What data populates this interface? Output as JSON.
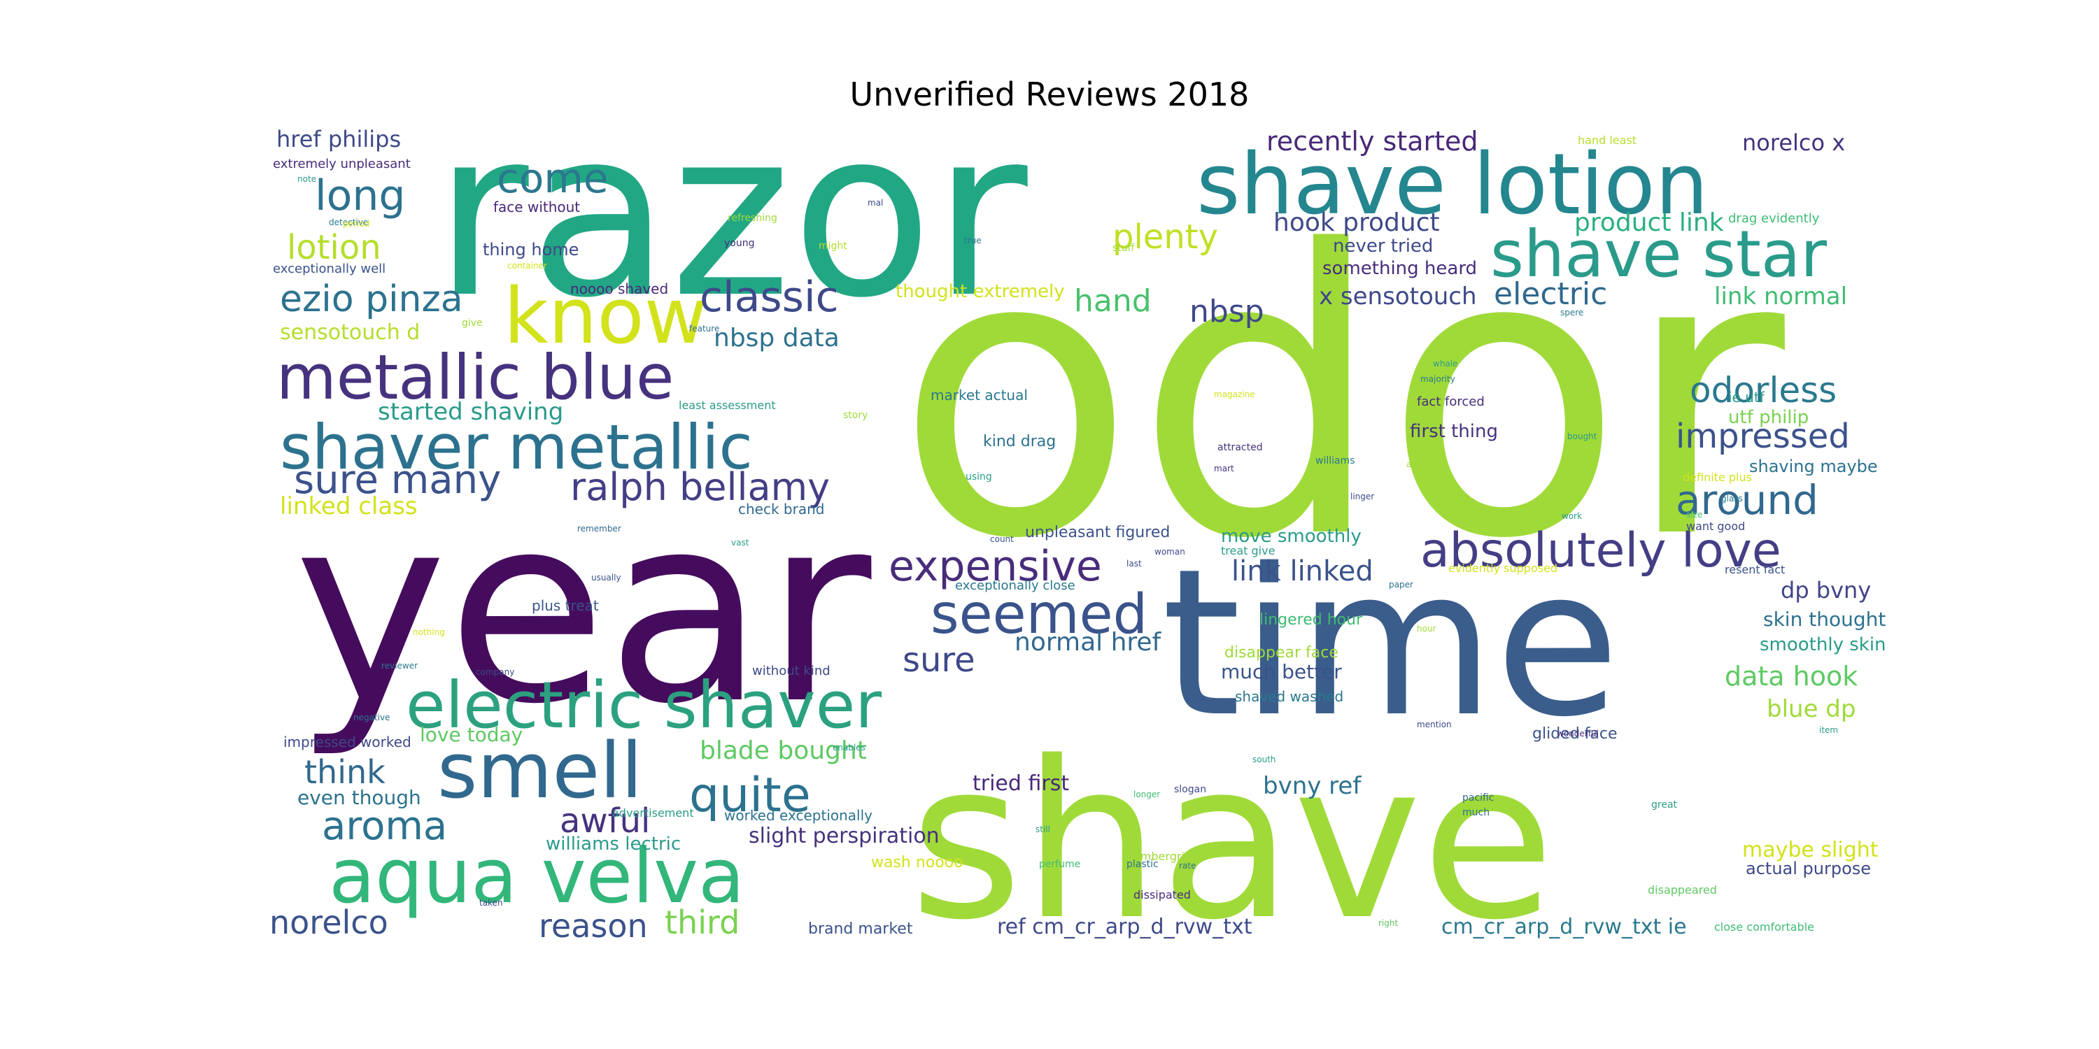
{
  "title": "Unverified Reviews 2018",
  "words": [
    {
      "text": "odor",
      "color": "#a0da39"
    },
    {
      "text": "razor",
      "color": "#22a785"
    },
    {
      "text": "year",
      "color": "#450c5d"
    },
    {
      "text": "time",
      "color": "#3b5d8b"
    },
    {
      "text": "shave",
      "color": "#a0da39"
    },
    {
      "text": "shave lotion",
      "color": "#24868e"
    },
    {
      "text": "shave star",
      "color": "#2a9b8a"
    },
    {
      "text": "know",
      "color": "#d2e21b"
    },
    {
      "text": "metallic blue",
      "color": "#46327e"
    },
    {
      "text": "shaver metallic",
      "color": "#2c728e"
    },
    {
      "text": "electric shaver",
      "color": "#2ba17f"
    },
    {
      "text": "aqua velva",
      "color": "#32b67a"
    },
    {
      "text": "smell",
      "color": "#31688e"
    },
    {
      "text": "absolutely love",
      "color": "#433e85"
    },
    {
      "text": "seemed",
      "color": "#3a538b"
    },
    {
      "text": "expensive",
      "color": "#472d7b"
    },
    {
      "text": "ralph bellamy",
      "color": "#433e85"
    },
    {
      "text": "sure many",
      "color": "#3b528b"
    },
    {
      "text": "classic",
      "color": "#3e4989"
    },
    {
      "text": "ezio pinza",
      "color": "#2c728e"
    },
    {
      "text": "long",
      "color": "#2c728e"
    },
    {
      "text": "come",
      "color": "#2a788e"
    },
    {
      "text": "lotion",
      "color": "#b5de2b"
    },
    {
      "text": "quite",
      "color": "#2c728e"
    },
    {
      "text": "sure",
      "color": "#3e4989"
    },
    {
      "text": "aroma",
      "color": "#2c728e"
    },
    {
      "text": "awful",
      "color": "#46327e"
    },
    {
      "text": "third",
      "color": "#7ad151"
    },
    {
      "text": "reason",
      "color": "#3b528b"
    },
    {
      "text": "norelco",
      "color": "#3b528b"
    },
    {
      "text": "think",
      "color": "#31688e"
    },
    {
      "text": "around",
      "color": "#31688e"
    },
    {
      "text": "odorless",
      "color": "#2a788e"
    },
    {
      "text": "impressed",
      "color": "#3b528b"
    },
    {
      "text": "plenty",
      "color": "#c2df23"
    },
    {
      "text": "hand",
      "color": "#4ac16d"
    },
    {
      "text": "electric",
      "color": "#31688e"
    },
    {
      "text": "nbsp",
      "color": "#3e4989"
    },
    {
      "text": "link linked",
      "color": "#3b528b"
    },
    {
      "text": "recently started",
      "color": "#482878"
    },
    {
      "text": "hook product",
      "color": "#3e4989"
    },
    {
      "text": "product link",
      "color": "#2ab07f"
    },
    {
      "text": "norelco x",
      "color": "#46327e"
    },
    {
      "text": "blade bought",
      "color": "#5ec962"
    },
    {
      "text": "normal href",
      "color": "#31688e"
    },
    {
      "text": "nbsp data",
      "color": "#2c728e"
    },
    {
      "text": "started shaving",
      "color": "#2a9b8a"
    },
    {
      "text": "linked class",
      "color": "#d2e21b"
    },
    {
      "text": "sensotouch d",
      "color": "#b5de2b"
    },
    {
      "text": "href philips",
      "color": "#3e4989"
    },
    {
      "text": "data hook",
      "color": "#5ec962"
    },
    {
      "text": "blue dp",
      "color": "#a0da39"
    },
    {
      "text": "dp bvny",
      "color": "#414487"
    },
    {
      "text": "skin thought",
      "color": "#2c728e"
    },
    {
      "text": "smoothly skin",
      "color": "#2a9b8a"
    },
    {
      "text": "bvny ref",
      "color": "#2c728e"
    },
    {
      "text": "tried first",
      "color": "#482878"
    },
    {
      "text": "slight perspiration",
      "color": "#46327e"
    },
    {
      "text": "even though",
      "color": "#2c728e"
    },
    {
      "text": "love today",
      "color": "#5ec962"
    },
    {
      "text": "williams lectric",
      "color": "#2a9b8a"
    },
    {
      "text": "maybe slight",
      "color": "#d2e21b"
    },
    {
      "text": "actual purpose",
      "color": "#3e4989"
    },
    {
      "text": "ref cm_cr_arp_d_rvw_txt",
      "color": "#3e4989"
    },
    {
      "text": "cm_cr_arp_d_rvw_txt ie",
      "color": "#2a788e"
    },
    {
      "text": "x sensotouch",
      "color": "#3e4989"
    },
    {
      "text": "link normal",
      "color": "#3fbc73"
    },
    {
      "text": "thought extremely",
      "color": "#d2e21b"
    },
    {
      "text": "move smoothly",
      "color": "#2a9b8a"
    },
    {
      "text": "much better",
      "color": "#3b528b"
    },
    {
      "text": "first thing",
      "color": "#46327e"
    },
    {
      "text": "never tried",
      "color": "#3e4989"
    },
    {
      "text": "something heard",
      "color": "#472d7b"
    },
    {
      "text": "utf philip",
      "color": "#7ad151"
    },
    {
      "text": "shaving maybe",
      "color": "#2c728e"
    },
    {
      "text": "thing home",
      "color": "#3e4989"
    },
    {
      "text": "face without",
      "color": "#482878"
    },
    {
      "text": "extremely unpleasant",
      "color": "#472d7b"
    },
    {
      "text": "exceptionally well",
      "color": "#3b528b"
    },
    {
      "text": "impressed worked",
      "color": "#3e4989"
    },
    {
      "text": "worked exceptionally",
      "color": "#2c728e"
    },
    {
      "text": "unpleasant figured",
      "color": "#3b528b"
    },
    {
      "text": "disappear face",
      "color": "#a0da39"
    },
    {
      "text": "lingered hour",
      "color": "#3fbc73"
    },
    {
      "text": "shaved washed",
      "color": "#2a788e"
    },
    {
      "text": "glided face",
      "color": "#3b528b"
    },
    {
      "text": "brand market",
      "color": "#3b528b"
    },
    {
      "text": "wash noooo",
      "color": "#d2e21b"
    },
    {
      "text": "noooo shaved",
      "color": "#482878"
    },
    {
      "text": "check brand",
      "color": "#31688e"
    },
    {
      "text": "plus treat",
      "color": "#3b528b"
    },
    {
      "text": "without kind",
      "color": "#3e4989"
    },
    {
      "text": "kind drag",
      "color": "#2c728e"
    },
    {
      "text": "market actual",
      "color": "#2a788e"
    },
    {
      "text": "fact forced",
      "color": "#472d7b"
    },
    {
      "text": "ie utf",
      "color": "#2a9b8a"
    },
    {
      "text": "hand least",
      "color": "#b5de2b"
    },
    {
      "text": "drag evidently",
      "color": "#3fbc73"
    },
    {
      "text": "want good",
      "color": "#3e4989"
    },
    {
      "text": "resent fact",
      "color": "#3b528b"
    },
    {
      "text": "exceptionally close",
      "color": "#2a788e"
    },
    {
      "text": "evidently supposed",
      "color": "#d2e21b"
    },
    {
      "text": "treat give",
      "color": "#2a9b8a"
    },
    {
      "text": "close comfortable",
      "color": "#3fbc73"
    },
    {
      "text": "least assessment",
      "color": "#2a9b8a"
    },
    {
      "text": "definite plus",
      "color": "#d2e21b"
    },
    {
      "text": "advertisement",
      "color": "#2a9b8a"
    },
    {
      "text": "ambergris",
      "color": "#a0da39"
    },
    {
      "text": "dissipated",
      "color": "#472d7b"
    },
    {
      "text": "disappeared",
      "color": "#5ec962"
    },
    {
      "text": "refreshing",
      "color": "#a0da39"
    },
    {
      "text": "container",
      "color": "#d2e21b"
    },
    {
      "text": "detective",
      "color": "#2a788e"
    },
    {
      "text": "reviewer",
      "color": "#2a788e"
    },
    {
      "text": "negative",
      "color": "#2c728e"
    },
    {
      "text": "company",
      "color": "#3e4989"
    },
    {
      "text": "magazine",
      "color": "#d2e21b"
    },
    {
      "text": "attracted",
      "color": "#46327e"
    },
    {
      "text": "williams",
      "color": "#2a788e"
    },
    {
      "text": "amazing",
      "color": "#a0da39"
    },
    {
      "text": "wonderful",
      "color": "#472d7b"
    },
    {
      "text": "remember",
      "color": "#31688e"
    },
    {
      "text": "usually",
      "color": "#3b528b"
    },
    {
      "text": "nothing",
      "color": "#d2e21b"
    },
    {
      "text": "enables",
      "color": "#2a9b8a"
    },
    {
      "text": "perfume",
      "color": "#3fbc73"
    },
    {
      "text": "plastic",
      "color": "#2c728e"
    },
    {
      "text": "slogan",
      "color": "#3e4989"
    },
    {
      "text": "longer",
      "color": "#3fbc73"
    },
    {
      "text": "pacific",
      "color": "#31688e"
    },
    {
      "text": "mention",
      "color": "#3e4989"
    },
    {
      "text": "majority",
      "color": "#2a788e"
    },
    {
      "text": "feature",
      "color": "#2c728e"
    },
    {
      "text": "bought",
      "color": "#2a9b8a"
    },
    {
      "text": "period",
      "color": "#d2e21b"
    },
    {
      "text": "spere",
      "color": "#2a788e"
    },
    {
      "text": "whale",
      "color": "#2a9b8a"
    },
    {
      "text": "story",
      "color": "#a0da39"
    },
    {
      "text": "using",
      "color": "#2a9b8a"
    },
    {
      "text": "young",
      "color": "#46327e"
    },
    {
      "text": "might",
      "color": "#b5de2b"
    },
    {
      "text": "true",
      "color": "#2c728e"
    },
    {
      "text": "give",
      "color": "#a0da39"
    },
    {
      "text": "note",
      "color": "#2a9b8a"
    },
    {
      "text": "mal",
      "color": "#3e4989"
    },
    {
      "text": "vast",
      "color": "#2a9b8a"
    },
    {
      "text": "count",
      "color": "#3b528b"
    },
    {
      "text": "woman",
      "color": "#3e4989"
    },
    {
      "text": "last",
      "color": "#3e4989"
    },
    {
      "text": "paper",
      "color": "#2c728e"
    },
    {
      "text": "hour",
      "color": "#a0da39"
    },
    {
      "text": "mart",
      "color": "#46327e"
    },
    {
      "text": "linger",
      "color": "#3e4989"
    },
    {
      "text": "work",
      "color": "#2a9b8a"
    },
    {
      "text": "size",
      "color": "#3fbc73"
    },
    {
      "text": "glass",
      "color": "#2a788e"
    },
    {
      "text": "item",
      "color": "#2a9b8a"
    },
    {
      "text": "great",
      "color": "#2a9b8a"
    },
    {
      "text": "south",
      "color": "#2a9b8a"
    },
    {
      "text": "still",
      "color": "#2a9b8a"
    },
    {
      "text": "rate",
      "color": "#2c728e"
    },
    {
      "text": "much",
      "color": "#2c728e"
    },
    {
      "text": "taken",
      "color": "#3e4989"
    },
    {
      "text": "right",
      "color": "#5ec962"
    },
    {
      "text": "stuff",
      "color": "#a0da39"
    }
  ]
}
